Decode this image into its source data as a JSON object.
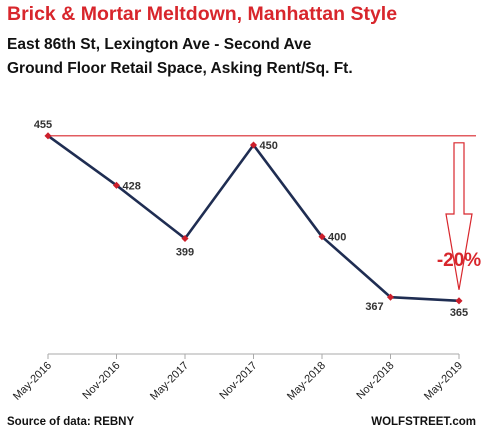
{
  "chart_data": {
    "type": "line",
    "title": "Brick & Mortar Meltdown, Manhattan Style",
    "subtitle": [
      "East 86th St, Lexington Ave - Second Ave",
      "Ground Floor Retail Space, Asking Rent/Sq. Ft."
    ],
    "categories": [
      "May-2016",
      "Nov-2016",
      "May-2017",
      "Nov-2017",
      "May-2018",
      "Nov-2018",
      "May-2019"
    ],
    "series": [
      {
        "values": [
          455,
          428,
          399,
          450,
          400,
          367,
          365
        ]
      }
    ],
    "ylim": [
      336,
      480
    ],
    "reference_line": 455,
    "annotation": "-20%",
    "grid": false,
    "colors": {
      "line": "#1f2d52",
      "marker": "#cc1f2b",
      "reference": "#d8262c"
    }
  },
  "footer": {
    "source": "Source of data: REBNY",
    "brand": "WOLFSTREET.com"
  }
}
